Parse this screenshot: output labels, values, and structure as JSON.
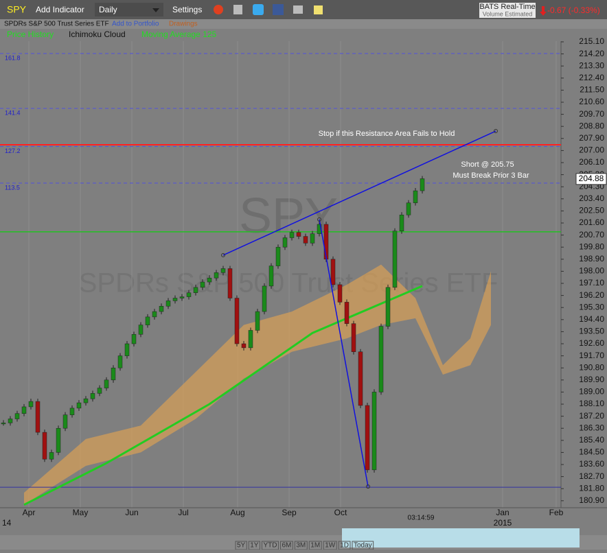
{
  "toolbar": {
    "symbol": "SPY",
    "add_indicator": "Add Indicator",
    "interval": "Daily",
    "settings": "Settings",
    "feed": "BATS Real-Time",
    "feed_note": "Volume Estimated",
    "change": "-0.67 (-0.33%)"
  },
  "subbar": {
    "name": "SPDRs S&P 500 Trust Series ETF",
    "add_portfolio": "Add to Portfolio",
    "drawings": "Drawings"
  },
  "legend": [
    "Price History",
    "Ichimoku Cloud",
    "Moving Average 125"
  ],
  "chart_data": {
    "type": "candlestick",
    "watermark": "SPY",
    "watermark_name": "SPDRs S&P 500 Trust Series ETF",
    "x": [
      0,
      1,
      2,
      3,
      4,
      5,
      6,
      7,
      8,
      9,
      10,
      11,
      12,
      13,
      14,
      15,
      16,
      17,
      18,
      19,
      20,
      21,
      22,
      23,
      24,
      25,
      26,
      27,
      28,
      29,
      30,
      31,
      32,
      33,
      34,
      35,
      36,
      37,
      38,
      39,
      40,
      41,
      42,
      43,
      44,
      45,
      46,
      47,
      48,
      49,
      50,
      51,
      52,
      53,
      54,
      55,
      56,
      57,
      58,
      59,
      60,
      61
    ],
    "series": [
      {
        "name": "Price History",
        "color_up": "#1a8a1a",
        "color_down": "#a01010",
        "values": [
          186.7,
          187.0,
          187.4,
          187.9,
          188.3,
          186.0,
          184.0,
          184.5,
          186.3,
          187.3,
          187.8,
          188.2,
          188.5,
          188.9,
          189.3,
          189.9,
          190.8,
          191.7,
          192.6,
          193.3,
          194.0,
          194.6,
          195.0,
          195.4,
          195.8,
          196.0,
          196.1,
          196.4,
          196.8,
          197.2,
          197.5,
          197.9,
          198.2,
          196.0,
          192.6,
          192.3,
          193.6,
          195.0,
          196.9,
          198.4,
          199.8,
          200.5,
          200.9,
          200.6,
          200.1,
          200.8,
          201.5,
          198.9,
          197.0,
          195.7,
          194.1,
          192.0,
          188.0,
          183.2,
          189.0,
          193.9,
          196.8,
          201.0,
          202.2,
          203.1,
          204.0,
          204.9
        ]
      },
      {
        "name": "Moving Average 125",
        "color": "#22cc22",
        "x": [
          3,
          15,
          30,
          45,
          61
        ],
        "values": [
          180.6,
          183.7,
          188.1,
          193.4,
          196.9
        ]
      }
    ],
    "cloud": {
      "name": "Ichimoku Cloud",
      "color": "#d9a055",
      "x": [
        3,
        12,
        20,
        28,
        35,
        42,
        50,
        55,
        60,
        64,
        68,
        71
      ],
      "upper": [
        181.5,
        185.5,
        186.5,
        190.5,
        194,
        195,
        197,
        198.5,
        196,
        191,
        193,
        198
      ],
      "lower": [
        180.6,
        183.5,
        184.5,
        187,
        190,
        192,
        193,
        194,
        194.5,
        190.3,
        191,
        194
      ]
    },
    "trendlines": [
      {
        "x": [
          32,
          71.7
        ],
        "values": [
          199.2,
          208.45
        ],
        "color": "#1010e0"
      },
      {
        "x": [
          46,
          53.1
        ],
        "values": [
          201.86,
          181.96
        ],
        "color": "#1010e0"
      }
    ],
    "fib_levels": [
      {
        "ratio": 161.8,
        "price": 214.23
      },
      {
        "ratio": 141.4,
        "price": 210.14
      },
      {
        "ratio": 127.2,
        "price": 207.3
      },
      {
        "ratio": 113.5,
        "price": 204.57
      }
    ],
    "resistance": {
      "value": 207.43,
      "color": "#ff2020"
    },
    "pivot": {
      "value": 200.94,
      "color": "#20c020"
    },
    "support": {
      "value": 181.91,
      "color": "#3030a0"
    },
    "last_price": {
      "value": 204.88,
      "label": "204.88"
    },
    "annotations": [
      "Stop if this Resistance Area Fails to Hold",
      "Short @ 205.75",
      "Must Break Prior 3 Bar"
    ],
    "ylim": [
      180.38,
      215.15
    ],
    "yticks": [
      {
        "value": 215.1,
        "label": "215.10"
      },
      {
        "value": 214.2,
        "label": "214.20"
      },
      {
        "value": 213.3,
        "label": "213.30"
      },
      {
        "value": 212.4,
        "label": "212.40"
      },
      {
        "value": 211.5,
        "label": "211.50"
      },
      {
        "value": 210.6,
        "label": "210.60"
      },
      {
        "value": 209.7,
        "label": "209.70"
      },
      {
        "value": 208.8,
        "label": "208.80"
      },
      {
        "value": 207.9,
        "label": "207.90"
      },
      {
        "value": 207,
        "label": "207.00"
      },
      {
        "value": 206.1,
        "label": "206.10"
      },
      {
        "value": 205.2,
        "label": "205.20"
      },
      {
        "value": 204.3,
        "label": "204.30"
      },
      {
        "value": 203.4,
        "label": "203.40"
      },
      {
        "value": 202.5,
        "label": "202.50"
      },
      {
        "value": 201.6,
        "label": "201.60"
      },
      {
        "value": 200.7,
        "label": "200.70"
      },
      {
        "value": 199.8,
        "label": "199.80"
      },
      {
        "value": 198.9,
        "label": "198.90"
      },
      {
        "value": 198,
        "label": "198.00"
      },
      {
        "value": 197.1,
        "label": "197.10"
      },
      {
        "value": 196.2,
        "label": "196.20"
      },
      {
        "value": 195.3,
        "label": "195.30"
      },
      {
        "value": 194.4,
        "label": "194.40"
      },
      {
        "value": 193.5,
        "label": "193.50"
      },
      {
        "value": 192.6,
        "label": "192.60"
      },
      {
        "value": 191.7,
        "label": "191.70"
      },
      {
        "value": 190.8,
        "label": "190.80"
      },
      {
        "value": 189.9,
        "label": "189.90"
      },
      {
        "value": 189,
        "label": "189.00"
      },
      {
        "value": 188.1,
        "label": "188.10"
      },
      {
        "value": 187.2,
        "label": "187.20"
      },
      {
        "value": 186.3,
        "label": "186.30"
      },
      {
        "value": 185.4,
        "label": "185.40"
      },
      {
        "value": 184.5,
        "label": "184.50"
      },
      {
        "value": 183.6,
        "label": "183.60"
      },
      {
        "value": 182.7,
        "label": "182.70"
      },
      {
        "value": 181.8,
        "label": "181.80"
      },
      {
        "value": 180.9,
        "label": "180.90"
      }
    ],
    "months": [
      "Apr",
      "May",
      "Jun",
      "Jul",
      "Aug",
      "Sep",
      "Oct",
      "Jan",
      "Feb"
    ],
    "year_start": "14",
    "year_next": "2015",
    "time": "03:14:59"
  },
  "ranges": [
    "5Y",
    "1Y",
    "YTD",
    "6M",
    "3M",
    "1M",
    "1W",
    "1D",
    "Today"
  ]
}
